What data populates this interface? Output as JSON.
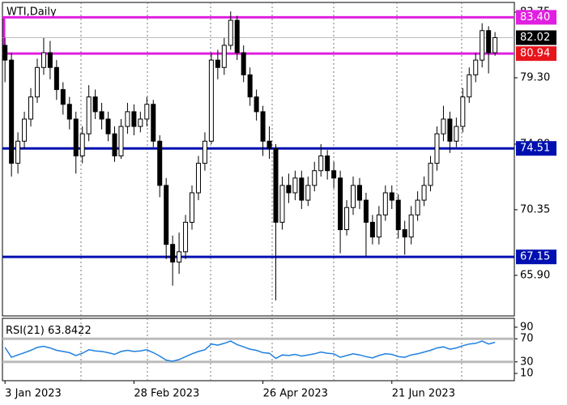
{
  "chart_data": [
    {
      "type": "candlestick",
      "title": "WTI,Daily",
      "x": [
        0,
        1,
        2,
        3,
        4,
        5,
        6,
        7,
        8,
        9,
        10,
        11,
        12,
        13,
        14,
        15,
        16,
        17,
        18,
        19,
        20,
        21,
        22,
        23,
        24,
        25,
        26,
        27,
        28,
        29,
        30,
        31,
        32,
        33,
        34,
        35,
        36,
        37,
        38,
        39,
        40,
        41,
        42,
        43,
        44,
        45,
        46,
        47,
        48,
        49,
        50,
        51,
        52,
        53,
        54,
        55,
        56,
        57,
        58,
        59,
        60,
        61,
        62,
        63,
        64,
        65,
        66,
        67,
        68,
        69,
        70,
        71,
        72,
        73,
        74,
        75,
        76
      ],
      "open": [
        81.5,
        80.5,
        73.5,
        75,
        76.5,
        78,
        80,
        81,
        80,
        78.5,
        77.5,
        76.5,
        74,
        75.5,
        78,
        77,
        76.5,
        75.5,
        74,
        76,
        77,
        76,
        76.5,
        77.5,
        75,
        72,
        68,
        66.8,
        67.5,
        69.5,
        71.5,
        73.5,
        75,
        80.5,
        80,
        81.5,
        83.2,
        81,
        79.5,
        78,
        77,
        75,
        74.5,
        69.5,
        72,
        71.5,
        72.5,
        71,
        72,
        73,
        74,
        73,
        72.5,
        69,
        70.5,
        72,
        71,
        69.5,
        68.5,
        70,
        71.5,
        71,
        69,
        68.5,
        70,
        71,
        72,
        73.5,
        75.5,
        76.5,
        75,
        76,
        78,
        79.5,
        80.5,
        82.5,
        81
      ],
      "high": [
        82,
        81,
        75.6,
        77,
        78.6,
        80.6,
        82,
        81.8,
        80.5,
        79,
        78,
        77,
        76,
        78.8,
        78.5,
        77.6,
        77,
        76,
        76.5,
        77.6,
        77.5,
        77,
        78,
        77.8,
        75.4,
        72.5,
        68.6,
        68.8,
        70,
        72,
        74,
        75.6,
        81,
        81.2,
        82,
        83.8,
        83.5,
        81.5,
        80,
        78.5,
        77.4,
        76,
        74.8,
        72.6,
        72.8,
        73,
        73,
        72.6,
        73.6,
        74.8,
        74.4,
        73.6,
        73,
        71,
        72.6,
        72.5,
        71.5,
        70,
        70.6,
        72,
        72,
        71.4,
        69.6,
        70.6,
        71.6,
        72.6,
        74,
        76,
        77.4,
        77,
        76.6,
        78.6,
        80,
        81,
        83,
        82.8,
        82.4
      ],
      "low": [
        79,
        72.6,
        72.8,
        74.5,
        76,
        77.6,
        79.5,
        79.2,
        77.8,
        76.8,
        75.8,
        72.8,
        73.5,
        75,
        76.5,
        75.8,
        75,
        73.6,
        73.8,
        75.5,
        75.4,
        75.6,
        76,
        74.6,
        71.2,
        67,
        65.2,
        66,
        67,
        69,
        71,
        73,
        74.8,
        79.2,
        79.5,
        81.2,
        80.5,
        79,
        77.4,
        76.4,
        74,
        73.8,
        64.2,
        69,
        70.8,
        71,
        70.4,
        70.6,
        71.6,
        72.6,
        72.4,
        71.8,
        67.4,
        68.6,
        70,
        70.4,
        67.2,
        68,
        68,
        69.6,
        70.4,
        68.4,
        67.3,
        68,
        69.6,
        70.6,
        71.6,
        73,
        75,
        74.2,
        74.6,
        75.6,
        77.6,
        79,
        80,
        79.6,
        80.8
      ],
      "close": [
        80.5,
        73.5,
        75,
        76.5,
        78,
        80,
        81,
        80,
        78.5,
        77.5,
        76.5,
        74,
        75.5,
        78,
        77,
        76.5,
        75.5,
        74,
        76,
        77,
        76,
        76.5,
        77.5,
        75,
        72,
        68,
        66.8,
        67.5,
        69.5,
        71.5,
        73.5,
        75,
        80.5,
        80,
        81.5,
        83.2,
        81,
        79.5,
        78,
        77,
        75,
        74.5,
        69.5,
        72,
        71.5,
        72.5,
        71,
        72,
        73,
        74,
        73,
        72.5,
        69,
        70.5,
        72,
        71,
        69.5,
        68.5,
        70,
        71.5,
        71,
        69,
        68.5,
        70,
        71,
        72,
        73.5,
        75.5,
        76.5,
        75,
        76,
        78,
        79.5,
        80.5,
        82.5,
        81,
        82.02
      ],
      "xlim": [
        -0.4,
        79
      ],
      "xticks": [
        {
          "value": 0,
          "label": "3 Jan 2023"
        },
        {
          "value": 20,
          "label": "28 Feb 2023"
        },
        {
          "value": 40,
          "label": "26 Apr 2023"
        },
        {
          "value": 60,
          "label": "21 Jun 2023"
        }
      ],
      "ylim": [
        63.15,
        84.41
      ],
      "yticks": [
        83.75,
        {
          "value": 79.3,
          "label": "79.30"
        },
        {
          "value": 74.8,
          "label": "74.80"
        },
        70.35,
        {
          "value": 65.9,
          "label": "65.90"
        }
      ],
      "last_price": 82.02,
      "levels": [
        {
          "value": 83.4,
          "label": "83.40",
          "color": "#e020e0"
        },
        {
          "value": 80.94,
          "label": "80.94",
          "color": "#e020e0",
          "box_color": "#e8141c"
        },
        {
          "value": 74.51,
          "label": "74.51",
          "color": "#0010b0"
        },
        {
          "value": 67.15,
          "label": "67.15",
          "color": "#0010b0"
        }
      ]
    },
    {
      "type": "line",
      "title": "RSI(21)",
      "last_value": 63.8422,
      "color": "#2080e0",
      "values": [
        55,
        38,
        42,
        46,
        50,
        55,
        57,
        54,
        50,
        48,
        46,
        41,
        45,
        51,
        49,
        48,
        46,
        43,
        48,
        50,
        48,
        49,
        51,
        46,
        40,
        33,
        31,
        34,
        39,
        44,
        48,
        51,
        61,
        59,
        62,
        66,
        60,
        56,
        52,
        50,
        46,
        45,
        36,
        42,
        41,
        43,
        40,
        42,
        44,
        47,
        45,
        44,
        38,
        41,
        44,
        42,
        39,
        37,
        41,
        44,
        43,
        39,
        38,
        42,
        44,
        47,
        50,
        54,
        56,
        52,
        54,
        58,
        61,
        62,
        66,
        61,
        63.8422
      ],
      "ylim": [
        -2.6,
        105.4
      ],
      "yticks": [
        90,
        70,
        30,
        10
      ],
      "levels": [
        70,
        30
      ]
    }
  ]
}
